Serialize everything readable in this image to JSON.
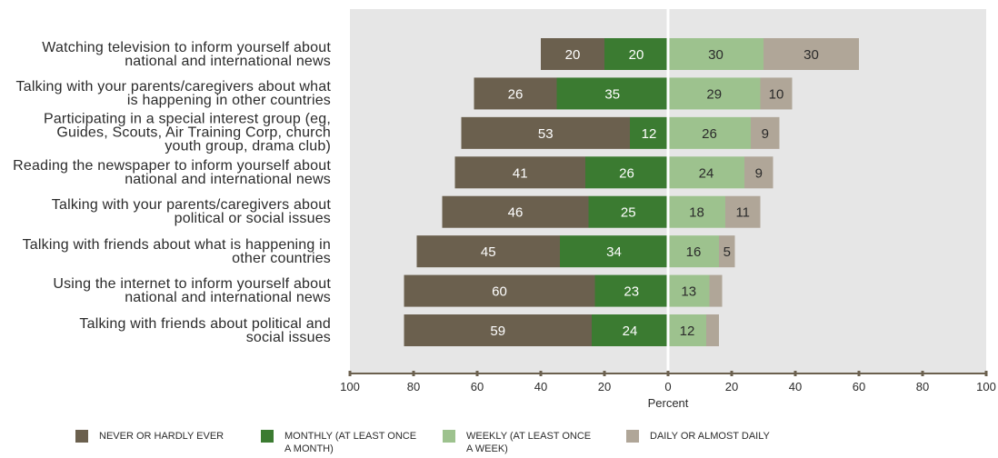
{
  "chart_data": {
    "type": "bar",
    "orientation": "horizontal",
    "stacking": "diverging",
    "categories": [
      "Watching television to inform yourself about\nnational and international news",
      "Talking with your parents/caregivers about what\nis happening in other countries",
      "Participating in a special interest group (eg,\nGuides, Scouts, Air Training Corp, church\nyouth group, drama club)",
      "Reading the newspaper to inform yourself about\nnational and international news",
      "Talking with your parents/caregivers about\npolitical or social issues",
      "Talking with friends about what is happening in\nother countries",
      "Using the internet to inform yourself about\nnational and international news",
      "Talking with friends about political and\nsocial issues"
    ],
    "series": [
      {
        "name": "NEVER OR HARDLY EVER",
        "side": "left",
        "color": "#6b604e",
        "label_color": "#ffffff",
        "values": [
          20,
          26,
          53,
          41,
          46,
          45,
          60,
          59
        ]
      },
      {
        "name": "MONTHLY (AT LEAST ONCE A MONTH)",
        "side": "left",
        "color": "#3b7b31",
        "label_color": "#ffffff",
        "values": [
          20,
          35,
          12,
          26,
          25,
          34,
          23,
          24
        ]
      },
      {
        "name": "WEEKLY (AT LEAST ONCE A WEEK)",
        "side": "right",
        "color": "#9dc28e",
        "label_color": "#2b2b2b",
        "values": [
          30,
          29,
          26,
          24,
          18,
          16,
          13,
          12
        ]
      },
      {
        "name": "DAILY OR ALMOST DAILY",
        "side": "right",
        "color": "#b0a698",
        "label_color": "#2b2b2b",
        "values": [
          30,
          10,
          9,
          9,
          11,
          5,
          4,
          4
        ]
      }
    ],
    "xlabel": "Percent",
    "xlim": [
      -100,
      100
    ],
    "x_ticks": [
      -100,
      -80,
      -60,
      -40,
      -20,
      0,
      20,
      40,
      60,
      80,
      100
    ],
    "x_tick_labels": [
      "100",
      "80",
      "60",
      "40",
      "20",
      "0",
      "20",
      "40",
      "60",
      "80",
      "100"
    ],
    "grid": false,
    "legend_position": "bottom",
    "colors": {
      "plot_background": "#e6e6e6",
      "zero_line": "#ffffff",
      "axis": "#6b604e"
    }
  }
}
